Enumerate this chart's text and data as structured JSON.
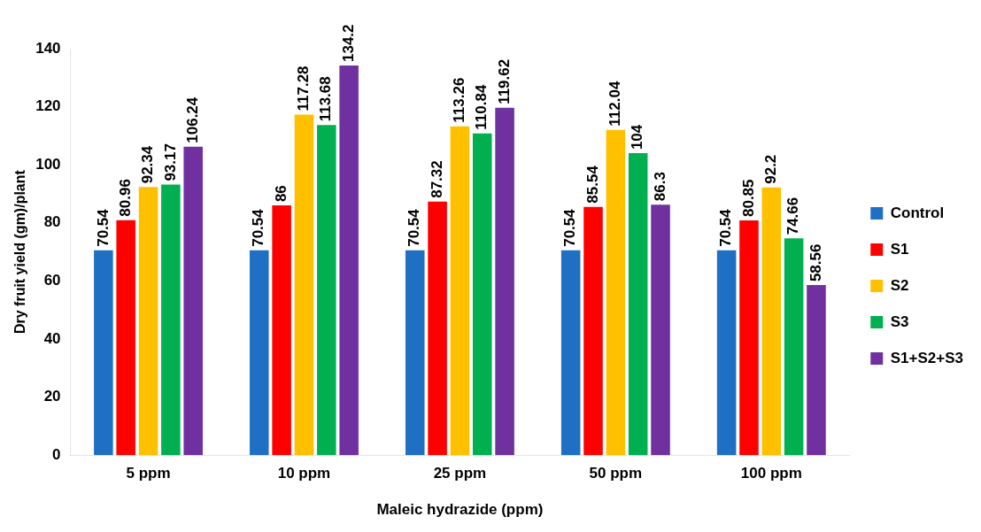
{
  "chart_data": {
    "type": "bar",
    "xlabel": "Maleic hydrazide (ppm)",
    "ylabel": "Dry fruit yield (gm)/plant",
    "categories": [
      "5 ppm",
      "10 ppm",
      "25 ppm",
      "50 ppm",
      "100 ppm"
    ],
    "series": [
      {
        "name": "Control",
        "color": "#1f6fc5",
        "values": [
          70.54,
          70.54,
          70.54,
          70.54,
          70.54
        ]
      },
      {
        "name": "S1",
        "color": "#ff0000",
        "values": [
          80.96,
          86,
          87.32,
          85.54,
          80.85
        ]
      },
      {
        "name": "S2",
        "color": "#ffc000",
        "values": [
          92.34,
          117.28,
          113.26,
          112.04,
          92.2
        ]
      },
      {
        "name": "S3",
        "color": "#00b050",
        "values": [
          93.17,
          113.68,
          110.84,
          104,
          74.66
        ]
      },
      {
        "name": "S1+S2+S3",
        "color": "#7030a0",
        "values": [
          106.24,
          134.2,
          119.62,
          86.3,
          58.56
        ]
      }
    ],
    "ylim": [
      0,
      140
    ],
    "yticks": [
      0,
      20,
      40,
      60,
      80,
      100,
      120,
      140
    ],
    "grid": false,
    "legend": "right",
    "data_labels": true
  }
}
